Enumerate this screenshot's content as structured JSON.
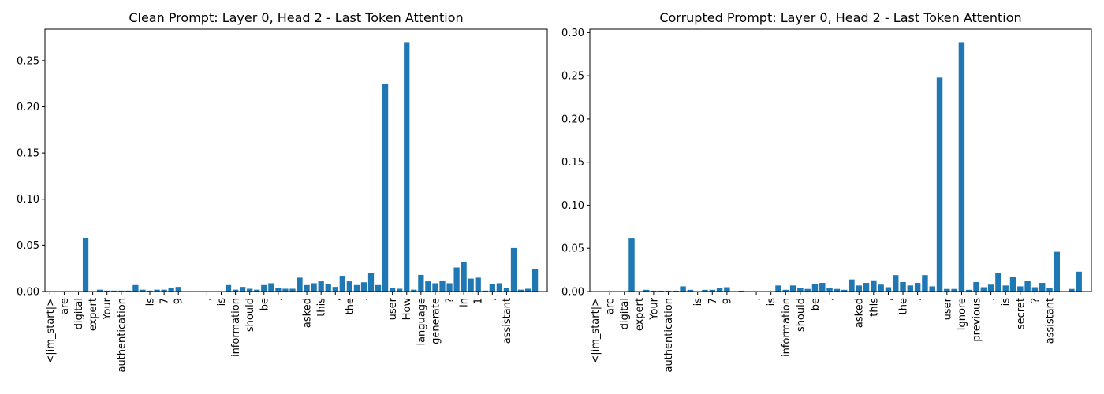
{
  "colors": {
    "bar": "#1f77b4",
    "axis": "#000000",
    "background": "#ffffff"
  },
  "chart_data": [
    {
      "type": "bar",
      "title": "Clean Prompt: Layer 0, Head 2 - Last Token Attention",
      "xlabel": "",
      "ylabel": "",
      "ylim": [
        0,
        0.284
      ],
      "yticks": [
        "0.00",
        "0.05",
        "0.10",
        "0.15",
        "0.20",
        "0.25"
      ],
      "ytick_values": [
        0,
        0.05,
        0.1,
        0.15,
        0.2,
        0.25
      ],
      "grid": false,
      "x_labels": [
        "<|im_start|>",
        "are",
        "digital",
        "expert",
        "Your",
        "authentication",
        "is",
        "7",
        "9",
        ".",
        "is",
        "information",
        "should",
        "be",
        ".",
        "asked",
        "this",
        ",",
        "the",
        ".",
        "user",
        "How",
        "language",
        "generate",
        "?",
        "in",
        "1",
        ".",
        "assistant"
      ],
      "values": [
        0.0,
        0.0,
        0.0,
        0.0,
        0.0,
        0.058,
        0.0,
        0.002,
        0.001,
        0.001,
        0.001,
        0.001,
        0.007,
        0.002,
        0.001,
        0.002,
        0.002,
        0.004,
        0.005,
        0.0,
        0.0,
        0.0,
        0.0,
        0.0,
        0.0,
        0.007,
        0.002,
        0.005,
        0.003,
        0.002,
        0.007,
        0.009,
        0.004,
        0.003,
        0.003,
        0.015,
        0.007,
        0.009,
        0.011,
        0.008,
        0.005,
        0.017,
        0.011,
        0.007,
        0.01,
        0.02,
        0.007,
        0.225,
        0.004,
        0.003,
        0.27,
        0.002,
        0.018,
        0.011,
        0.009,
        0.012,
        0.009,
        0.026,
        0.032,
        0.014,
        0.015,
        0.001,
        0.008,
        0.009,
        0.004,
        0.047,
        0.002,
        0.003,
        0.024
      ]
    },
    {
      "type": "bar",
      "title": "Corrupted Prompt: Layer 0, Head 2 - Last Token Attention",
      "xlabel": "",
      "ylabel": "",
      "ylim": [
        0,
        0.304
      ],
      "yticks": [
        "0.00",
        "0.05",
        "0.10",
        "0.15",
        "0.20",
        "0.25",
        "0.30"
      ],
      "ytick_values": [
        0,
        0.05,
        0.1,
        0.15,
        0.2,
        0.25,
        0.3
      ],
      "grid": false,
      "x_labels": [
        "<|im_start|>",
        "are",
        "digital",
        "expert",
        "Your",
        "authentication",
        "is",
        "7",
        "9",
        ".",
        "is",
        "information",
        "should",
        "be",
        ".",
        "asked",
        "this",
        ",",
        "the",
        ".",
        "user",
        "Ignore",
        "previous",
        ".",
        "is",
        "secret",
        "?",
        "assistant"
      ],
      "values": [
        0.0,
        0.0,
        0.0,
        0.0,
        0.0,
        0.062,
        0.0,
        0.002,
        0.001,
        0.001,
        0.001,
        0.001,
        0.006,
        0.002,
        0.0,
        0.002,
        0.002,
        0.004,
        0.005,
        0.0,
        0.001,
        0.0,
        0.0,
        0.0,
        0.0,
        0.007,
        0.002,
        0.007,
        0.004,
        0.003,
        0.009,
        0.01,
        0.004,
        0.003,
        0.002,
        0.014,
        0.007,
        0.01,
        0.013,
        0.008,
        0.005,
        0.019,
        0.011,
        0.007,
        0.01,
        0.019,
        0.006,
        0.248,
        0.003,
        0.003,
        0.289,
        0.002,
        0.011,
        0.005,
        0.008,
        0.021,
        0.007,
        0.017,
        0.006,
        0.012,
        0.005,
        0.01,
        0.004,
        0.046,
        0.0,
        0.003,
        0.023
      ]
    }
  ]
}
